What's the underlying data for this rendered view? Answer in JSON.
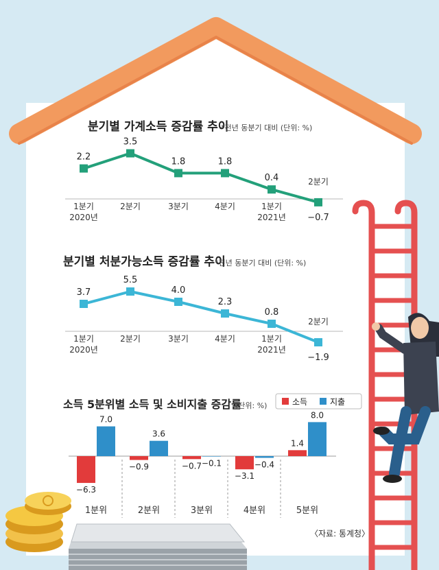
{
  "colors": {
    "background": "#d6eaf3",
    "house": "#ffffff",
    "roof": "#f29a5e",
    "roof_edge": "#e8834a",
    "chart1_line": "#23a07a",
    "chart2_line": "#3cb6d6",
    "income_bar": "#e23b3b",
    "spending_bar": "#2f8fc9",
    "ladder": "#e55050"
  },
  "chart_data": [
    {
      "type": "line",
      "title": "분기별 가계소득 증감률 추이",
      "note": "*전년 동분기 대비 (단위: %)",
      "x": [
        "1분기",
        "2분기",
        "3분기",
        "4분기",
        "1분기",
        "2분기"
      ],
      "year_labels": [
        "2020년",
        "",
        "",
        "",
        "2021년",
        ""
      ],
      "series": [
        {
          "values": [
            2.2,
            3.5,
            1.8,
            1.8,
            0.4,
            -0.7
          ]
        }
      ],
      "value_labels": [
        "2.2",
        "3.5",
        "1.8",
        "1.8",
        "0.4",
        "−0.7"
      ]
    },
    {
      "type": "line",
      "title": "분기별 처분가능소득 증감률 추이",
      "note": "*전년 동분기 대비 (단위: %)",
      "x": [
        "1분기",
        "2분기",
        "3분기",
        "4분기",
        "1분기",
        "2분기"
      ],
      "year_labels": [
        "2020년",
        "",
        "",
        "",
        "2021년",
        ""
      ],
      "series": [
        {
          "values": [
            3.7,
            5.5,
            4.0,
            2.3,
            0.8,
            -1.9
          ]
        }
      ],
      "value_labels": [
        "3.7",
        "5.5",
        "4.0",
        "2.3",
        "0.8",
        "−1.9"
      ]
    },
    {
      "type": "bar",
      "title": "소득 5분위별 소득 및 소비지출 증감률",
      "note": "(단위: %)",
      "categories": [
        "1분위",
        "2분위",
        "3분위",
        "4분위",
        "5분위"
      ],
      "series": [
        {
          "name": "소득",
          "values": [
            -6.3,
            -0.9,
            -0.7,
            -3.1,
            1.4
          ],
          "labels": [
            "−6.3",
            "−0.9",
            "−0.7",
            "−3.1",
            "1.4"
          ]
        },
        {
          "name": "지출",
          "values": [
            7.0,
            3.6,
            -0.1,
            -0.4,
            8.0
          ],
          "labels": [
            "7.0",
            "3.6",
            "−0.1",
            "−0.4",
            "8.0"
          ]
        }
      ],
      "legend": "top-right"
    }
  ],
  "source": "〈자료: 통계청〉"
}
